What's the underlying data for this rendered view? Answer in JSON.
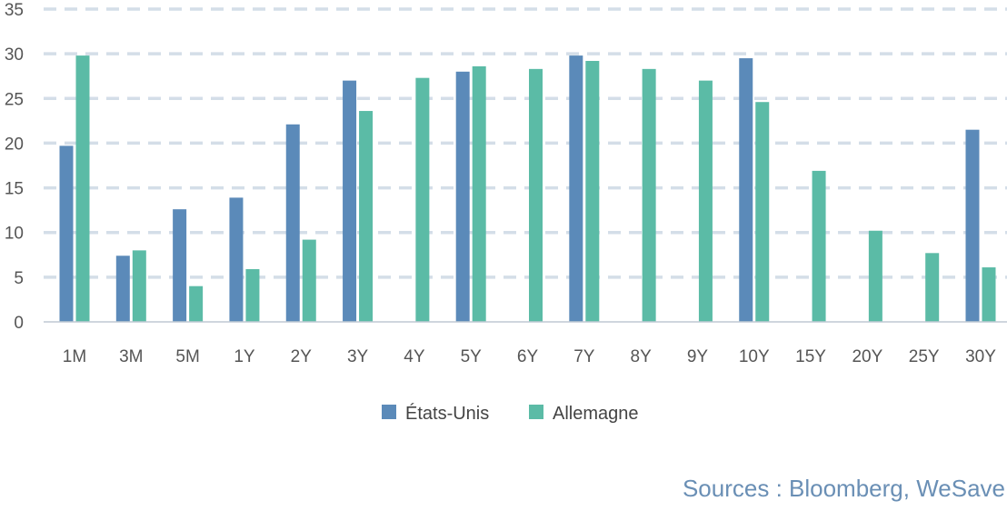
{
  "chart_data": {
    "type": "bar",
    "categories": [
      "1M",
      "3M",
      "5M",
      "1Y",
      "2Y",
      "3Y",
      "4Y",
      "5Y",
      "6Y",
      "7Y",
      "8Y",
      "9Y",
      "10Y",
      "15Y",
      "20Y",
      "25Y",
      "30Y"
    ],
    "series": [
      {
        "name": "États-Unis",
        "color": "#5b8ab9",
        "values": [
          19.7,
          7.4,
          12.6,
          13.9,
          22.1,
          27.0,
          null,
          28.0,
          null,
          29.8,
          null,
          null,
          29.5,
          null,
          null,
          null,
          21.5
        ]
      },
      {
        "name": "Allemagne",
        "color": "#5bbba6",
        "values": [
          29.8,
          8.0,
          4.0,
          5.9,
          9.2,
          23.6,
          27.3,
          28.6,
          28.3,
          29.2,
          28.3,
          27.0,
          24.6,
          16.9,
          10.2,
          7.7,
          6.1
        ]
      }
    ],
    "ylim": [
      0,
      35
    ],
    "yticks": [
      0,
      5,
      10,
      15,
      20,
      25,
      30,
      35
    ],
    "grid": true,
    "legend_position": "bottom-center"
  },
  "source_text": "Sources : Bloomberg, WeSave",
  "grid_color": "#d4dee8"
}
